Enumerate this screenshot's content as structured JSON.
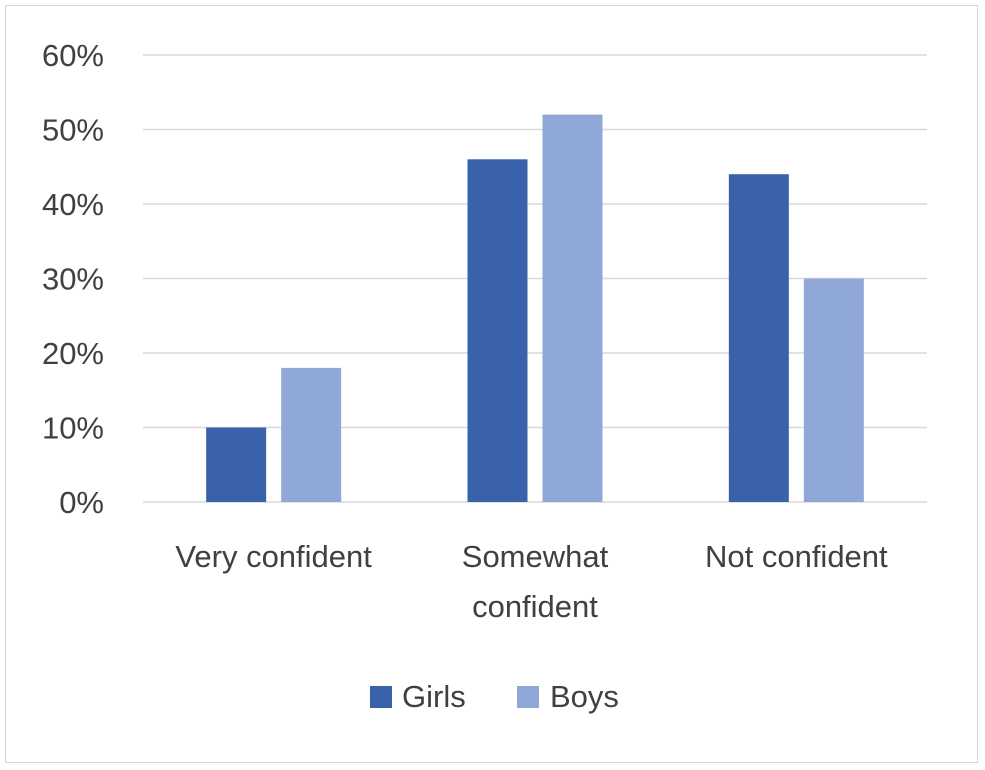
{
  "chart_data": {
    "type": "bar",
    "categories": [
      [
        "Very confident"
      ],
      [
        "Somewhat",
        "confident"
      ],
      [
        "Not confident"
      ]
    ],
    "series": [
      {
        "name": "Girls",
        "values": [
          10,
          46,
          44
        ],
        "color": "#3a62ab"
      },
      {
        "name": "Boys",
        "values": [
          18,
          52,
          30
        ],
        "color": "#8fa8d8"
      }
    ],
    "y_ticks": [
      "0%",
      "10%",
      "20%",
      "30%",
      "40%",
      "50%",
      "60%"
    ],
    "ylim": [
      0,
      60
    ],
    "ytick_step": 10,
    "grid": true,
    "legend_position": "bottom",
    "gridline_color": "#d9d9d9"
  }
}
